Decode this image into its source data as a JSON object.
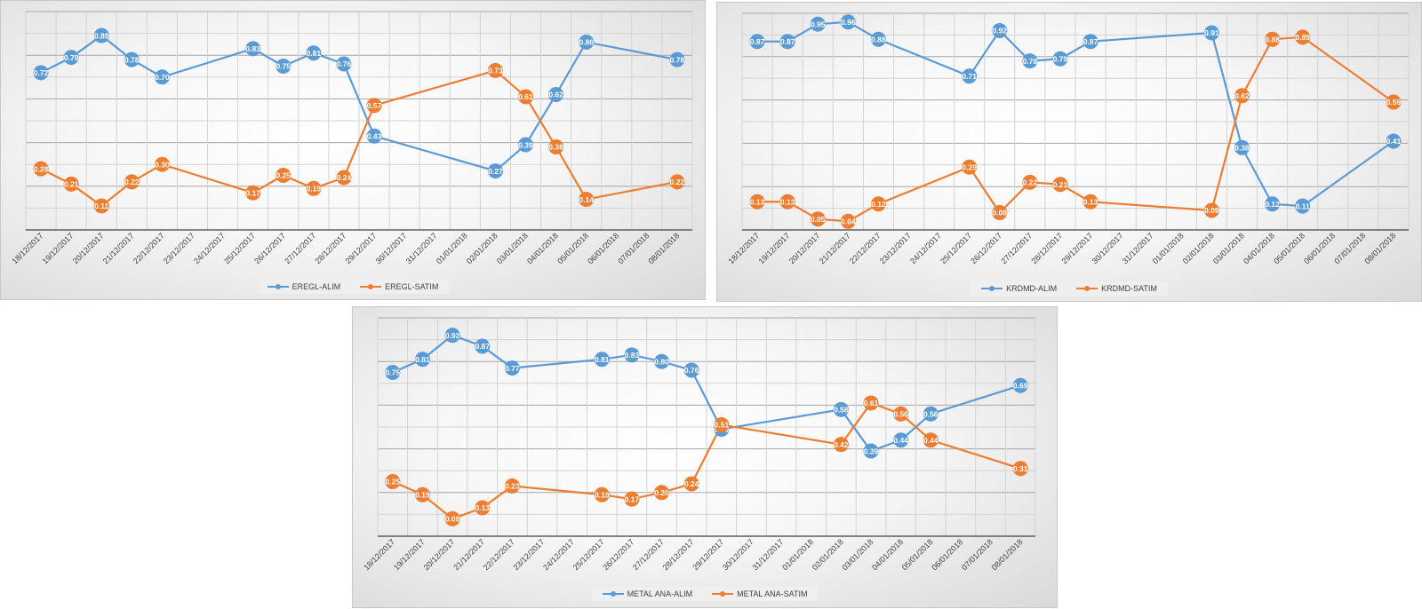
{
  "chart_data": [
    {
      "type": "line",
      "title": "",
      "xlabel": "",
      "ylabel": "",
      "ylim": [
        0,
        1
      ],
      "grid": true,
      "legend": "bottom",
      "categories": [
        "18/12/2017",
        "19/12/2017",
        "20/12/2017",
        "21/12/2017",
        "22/12/2017",
        "23/12/2017",
        "24/12/2017",
        "25/12/2017",
        "26/12/2017",
        "27/12/2017",
        "28/12/2017",
        "29/12/2017",
        "30/12/2017",
        "31/12/2017",
        "01/01/2018",
        "02/01/2018",
        "03/01/2018",
        "04/01/2018",
        "05/01/2018",
        "06/01/2018",
        "07/01/2018",
        "08/01/2018"
      ],
      "series": [
        {
          "name": "EREGL-ALIM",
          "color": "#5b9bd5",
          "values": [
            0.72,
            0.79,
            0.89,
            0.78,
            0.7,
            null,
            null,
            0.83,
            0.75,
            0.81,
            0.76,
            0.43,
            null,
            null,
            null,
            0.27,
            0.39,
            0.62,
            0.86,
            null,
            null,
            0.78
          ]
        },
        {
          "name": "EREGL-SATIM",
          "color": "#ed7d31",
          "values": [
            0.28,
            0.21,
            0.11,
            0.22,
            0.3,
            null,
            null,
            0.17,
            0.25,
            0.19,
            0.24,
            0.57,
            null,
            null,
            null,
            0.73,
            0.61,
            0.38,
            0.14,
            null,
            null,
            0.22
          ]
        }
      ]
    },
    {
      "type": "line",
      "title": "",
      "xlabel": "",
      "ylabel": "",
      "ylim": [
        0,
        1
      ],
      "grid": true,
      "legend": "bottom",
      "categories": [
        "18/12/2017",
        "19/12/2017",
        "20/12/2017",
        "21/12/2017",
        "22/12/2017",
        "23/12/2017",
        "24/12/2017",
        "25/12/2017",
        "26/12/2017",
        "27/12/2017",
        "28/12/2017",
        "29/12/2017",
        "30/12/2017",
        "31/12/2017",
        "01/01/2018",
        "02/01/2018",
        "03/01/2018",
        "04/01/2018",
        "05/01/2018",
        "06/01/2018",
        "07/01/2018",
        "08/01/2018"
      ],
      "series": [
        {
          "name": "KRDMD-ALIM",
          "color": "#5b9bd5",
          "values": [
            0.87,
            0.87,
            0.95,
            0.96,
            0.88,
            null,
            null,
            0.71,
            0.92,
            0.78,
            0.79,
            0.87,
            null,
            null,
            null,
            0.91,
            0.38,
            0.12,
            0.11,
            null,
            null,
            0.41
          ]
        },
        {
          "name": "KRDMD-SATIM",
          "color": "#ed7d31",
          "values": [
            0.13,
            0.13,
            0.05,
            0.04,
            0.12,
            null,
            null,
            0.29,
            0.08,
            0.22,
            0.21,
            0.13,
            null,
            null,
            null,
            0.09,
            0.62,
            0.88,
            0.89,
            null,
            null,
            0.59
          ]
        }
      ]
    },
    {
      "type": "line",
      "title": "",
      "xlabel": "",
      "ylabel": "",
      "ylim": [
        0,
        1
      ],
      "grid": true,
      "legend": "bottom",
      "categories": [
        "18/12/2017",
        "19/12/2017",
        "20/12/2017",
        "21/12/2017",
        "22/12/2017",
        "23/12/2017",
        "24/12/2017",
        "25/12/2017",
        "26/12/2017",
        "27/12/2017",
        "28/12/2017",
        "29/12/2017",
        "30/12/2017",
        "31/12/2017",
        "01/01/2018",
        "02/01/2018",
        "03/01/2018",
        "04/01/2018",
        "05/01/2018",
        "06/01/2018",
        "07/01/2018",
        "08/01/2018"
      ],
      "series": [
        {
          "name": "METAL ANA-ALIM",
          "color": "#5b9bd5",
          "values": [
            0.75,
            0.81,
            0.92,
            0.87,
            0.77,
            null,
            null,
            0.81,
            0.83,
            0.8,
            0.76,
            0.49,
            null,
            null,
            null,
            0.58,
            0.39,
            0.44,
            0.56,
            null,
            null,
            0.69
          ]
        },
        {
          "name": "METAL ANA-SATIM",
          "color": "#ed7d31",
          "values": [
            0.25,
            0.19,
            0.08,
            0.13,
            0.23,
            null,
            null,
            0.19,
            0.17,
            0.2,
            0.24,
            0.51,
            null,
            null,
            null,
            0.42,
            0.61,
            0.56,
            0.44,
            null,
            null,
            0.31
          ]
        }
      ]
    }
  ]
}
